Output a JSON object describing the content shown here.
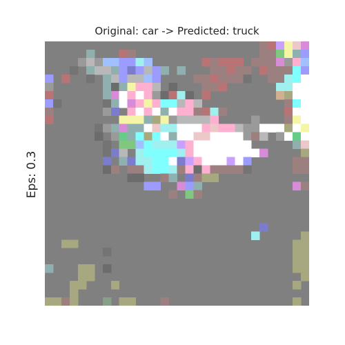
{
  "figure": {
    "title": "Original: car -> Predicted: truck",
    "ylabel": "Eps: 0.3"
  },
  "image": {
    "grid_size": 32,
    "background_color": "#808080",
    "palette": {
      "g": "#808080",
      "d": "#747474",
      "k": "#6c6c6c",
      "l": "#9a9a9a",
      "s": "#b8b8b8",
      "w": "#ffffff",
      "y": "#f5f5a8",
      "c": "#80ffff",
      "t": "#a0f0f0",
      "b": "#9c9cff",
      "n": "#7c7ccc",
      "p": "#ffb0d0",
      "m": "#d88cd8",
      "v": "#c8a0ff",
      "r": "#b87474",
      "q": "#9c8080",
      "o": "#a8a880",
      "e": "#80c880",
      "f": "#66cc88",
      "h": "#90b0b0",
      "u": "#a0c0ff",
      "a": "#d0b090",
      "x": "#ecc8c8",
      "z": "#88a088"
    },
    "rows": [
      "ggggggggggggggggggggggggggqrvyxm",
      "ggggghgggrqgggggggggggggggqqeyhb",
      "gggglsluubbtuggggggrqrrrgqqqmlpu",
      "gggdghsshbnbsbhghgggqqrqqgrqqqcb",
      "bgrggdghsbssubggggqqrqqqdggqqtcw",
      "lgggggghkhyppsgkgggqqrggggggttww",
      "rgggggghmwpwplkrtkgrggggggggaoww",
      "bdgggggdhwmpypccspsggggggggggqcw",
      "qgggggglngpwpwhwppqrtqgggggggrww",
      "rggggggggyyyhoylsssspgggglgggqyw",
      "ggggggdlhmhhwxttwwwpxppsllwwwowy",
      "ggggggkglfhcocwhwwxxwwwwlqsglwfw",
      "gggggggdgeeuctttvpwwwwwwwggggghx",
      "gggggggdnsgtcccctpwwwwwwwwmggggo",
      "gggggggnghnttccwnvpwwwvwbgggggqq",
      "gggggggkqgqqtcctqpkpqqqqdgggggqq",
      "ggggggggggkkggqhgnqooggggggggggg",
      "ggggggggggggbbggmbhgggggggggggmq",
      "gggggggggggggggqgeqggggggggggggg",
      "gggggggggggggggggggggggggggggggg",
      "gggggggggggggggggggggggggggggggg",
      "gggggggggggggggggggggggggggggggg",
      "ggggggggggggggggggggggggggnggggg",
      "gggggggggggggggggggggggggtgggggo",
      "ggooggggggggggggggggggggggggggoo",
      "gggggggdggggggggggggggggggggggoo",
      "ggggggggggggggggggggggggggggggoo",
      "hgggoogkggggggggggggggggggggggoo",
      "ggggoogggggggggggggggggggggggggo",
      "gggoogggogggggggggggggggggggggog",
      "gggogggggggggggggggggggggggggggg",
      "ooqogggzgoogggqgggggggggggggggog"
    ]
  }
}
